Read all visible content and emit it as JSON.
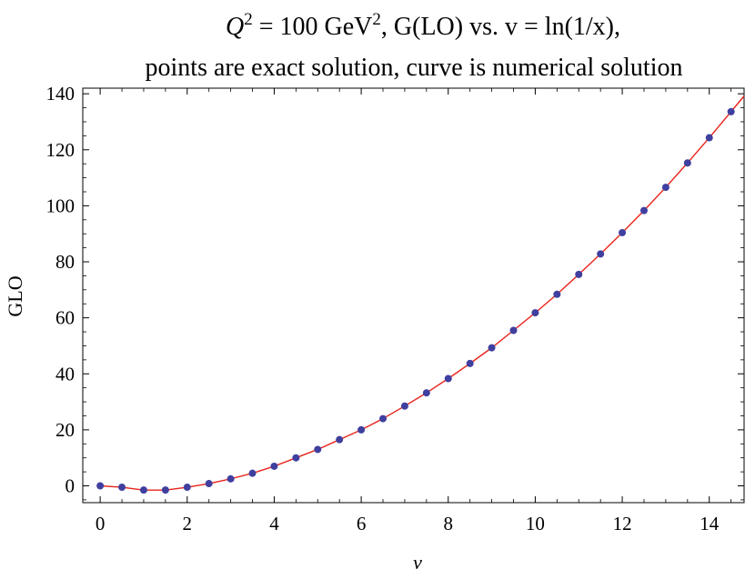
{
  "chart_data": {
    "type": "scatter",
    "title_parts": [
      "Q",
      "2",
      " = 100 GeV",
      "2",
      ", G(LO) vs. v = ln(1/x),"
    ],
    "subtitle": "points are exact solution, curve is numerical solution",
    "xlabel": "v",
    "ylabel": "GLO",
    "xlim": [
      -0.4,
      14.8
    ],
    "ylim": [
      -6,
      142
    ],
    "x_ticks": [
      0,
      2,
      4,
      6,
      8,
      10,
      12,
      14
    ],
    "y_ticks": [
      0,
      20,
      40,
      60,
      80,
      100,
      120,
      140
    ],
    "grid": false,
    "series": [
      {
        "style": "points",
        "color": "#3f3f9f",
        "x": [
          0,
          0.5,
          1,
          1.5,
          2,
          2.5,
          3,
          3.5,
          4,
          4.5,
          5,
          5.5,
          6,
          6.5,
          7,
          7.5,
          8,
          8.5,
          9,
          9.5,
          10,
          10.5,
          11,
          11.5,
          12,
          12.5,
          13,
          13.5,
          14,
          14.5
        ],
        "y": [
          0,
          -0.5,
          -1.5,
          -1.5,
          -0.5,
          0.8,
          2.5,
          4.5,
          7,
          10,
          13,
          16.5,
          20,
          24,
          28.5,
          33.2,
          38.3,
          43.7,
          49.3,
          55.5,
          61.8,
          68.4,
          75.5,
          82.8,
          90.4,
          98.3,
          106.6,
          115.3,
          124.3,
          133.6
        ]
      },
      {
        "style": "line",
        "color": "#e8231b",
        "x": [
          0,
          0.5,
          1,
          1.5,
          2,
          2.5,
          3,
          3.5,
          4,
          4.5,
          5,
          5.5,
          6,
          6.5,
          7,
          7.5,
          8,
          8.5,
          9,
          9.5,
          10,
          10.5,
          11,
          11.5,
          12,
          12.5,
          13,
          13.5,
          14,
          14.5,
          14.8
        ],
        "y": [
          0,
          -0.5,
          -1.5,
          -1.5,
          -0.5,
          0.8,
          2.5,
          4.5,
          7,
          10,
          13,
          16.5,
          20,
          24,
          28.5,
          33.2,
          38.3,
          43.7,
          49.3,
          55.5,
          61.8,
          68.4,
          75.5,
          82.8,
          90.4,
          98.3,
          106.6,
          115.3,
          124.3,
          133.6,
          139.2
        ]
      }
    ]
  }
}
